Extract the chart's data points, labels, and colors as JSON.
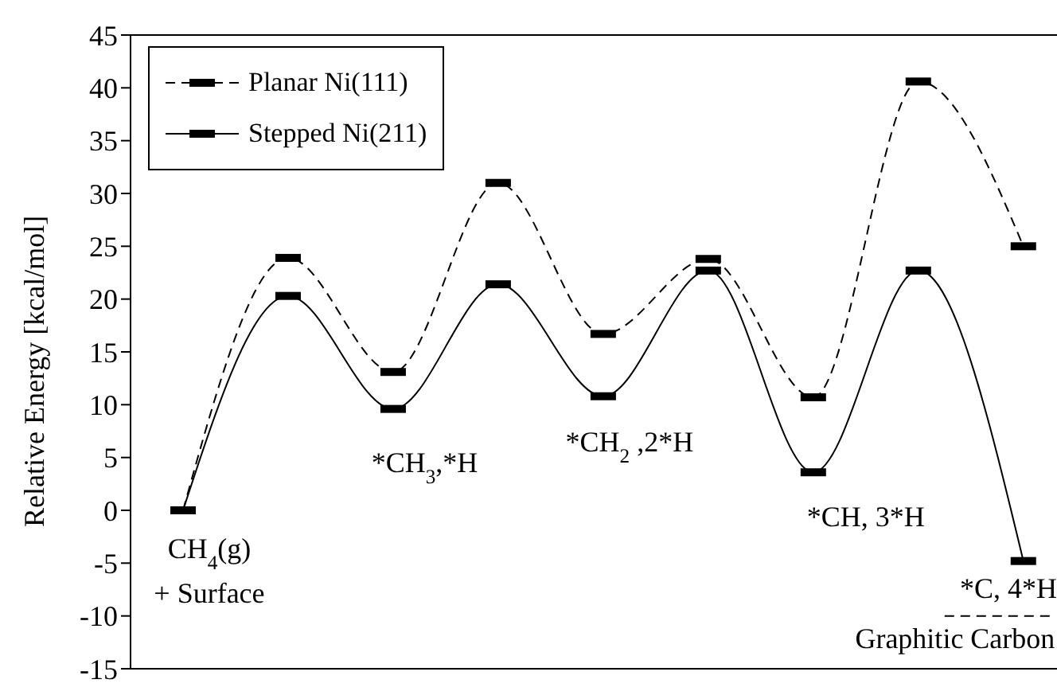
{
  "chart_data": {
    "type": "line",
    "ylabel": "Relative Energy [kcal/mol]",
    "categories": [
      null,
      null,
      null,
      null,
      null,
      null,
      null,
      null,
      null
    ],
    "series": [
      {
        "name": "Planar Ni(111)",
        "color": "#000000",
        "line_style": "dashed",
        "values": [
          0,
          23.9,
          13.1,
          31.0,
          16.7,
          23.8,
          10.7,
          40.6,
          25.0
        ]
      },
      {
        "name": "Stepped Ni(211)",
        "color": "#000000",
        "line_style": "solid",
        "values": [
          0,
          20.3,
          9.6,
          21.4,
          10.8,
          22.7,
          3.6,
          22.7,
          -4.8
        ]
      }
    ],
    "ylim": [
      -15,
      45
    ],
    "yticks": [
      -15,
      -10,
      -5,
      0,
      5,
      10,
      15,
      20,
      25,
      30,
      35,
      40,
      45
    ],
    "grid": false,
    "legend": "top left",
    "marker": "square",
    "ref_lines": [
      {
        "axis": "y",
        "value": -10,
        "label": "Graphitic Carbon",
        "line_style": "dashed",
        "color": "#000000"
      }
    ],
    "annotations": [
      "CH$_{4}$(g)\n+ Surface",
      "*CH$_{3}$,*H",
      "*CH$_{2}$ ,2*H",
      "*CH, 3*H",
      "*C, 4*H"
    ]
  }
}
